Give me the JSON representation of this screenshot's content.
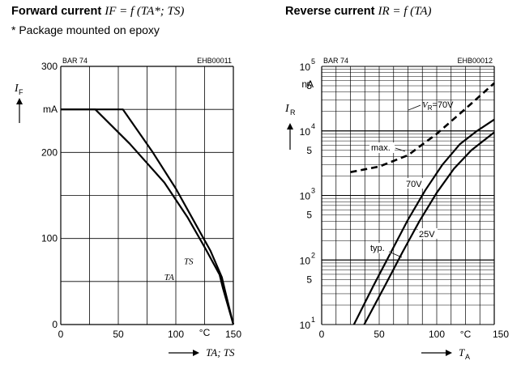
{
  "left_title": {
    "bold": "Forward current",
    "formula": "IF = f (TA*; TS)"
  },
  "left_subtitle": "* Package mounted on epoxy",
  "right_title": {
    "bold": "Reverse current",
    "formula": "IR = f (TA)"
  },
  "chart_data": [
    {
      "type": "line",
      "title": "Forward current IF = f (TA*; TS)",
      "header_left": "BAR 74",
      "header_right": "EHB00011",
      "ylabel": "IF",
      "y_unit": "mA",
      "xlabel": "TA; TS",
      "x_unit": "°C",
      "xlim": [
        0,
        150
      ],
      "ylim": [
        0,
        300
      ],
      "x_ticks": [
        "0",
        "50",
        "100",
        "150"
      ],
      "y_ticks": [
        "0",
        "100",
        "200",
        "300"
      ],
      "grid": true,
      "series": [
        {
          "name": "TS",
          "x": [
            0,
            54,
            80,
            100,
            115,
            130,
            140,
            143,
            150
          ],
          "y": [
            250,
            250,
            200,
            158,
            122,
            86,
            55,
            38,
            0
          ]
        },
        {
          "name": "TA",
          "x": [
            0,
            30,
            60,
            90,
            110,
            125,
            138,
            141,
            150
          ],
          "y": [
            250,
            250,
            210,
            165,
            125,
            90,
            58,
            42,
            0
          ]
        }
      ]
    },
    {
      "type": "line",
      "title": "Reverse current IR = f (TA)",
      "header_left": "BAR 74",
      "header_right": "EHB00012",
      "ylabel": "IR",
      "y_unit": "nA",
      "xlabel": "TA",
      "x_unit": "°C",
      "xlim": [
        0,
        150
      ],
      "ylim": [
        10,
        100000
      ],
      "y_scale": "log",
      "x_ticks": [
        "0",
        "50",
        "100",
        "150"
      ],
      "y_tick_labels": [
        "10^1",
        "5",
        "10^2",
        "5",
        "10^3",
        "5",
        "10^4",
        "5",
        "10^5"
      ],
      "grid": true,
      "annotations": [
        "VR = 70V",
        "max.",
        "typ.",
        "70V",
        "25V"
      ],
      "series": [
        {
          "name": "max.",
          "style": "dashed",
          "x": [
            25,
            50,
            75,
            100,
            125,
            150
          ],
          "y": [
            2300,
            2800,
            4200,
            9000,
            22000,
            55000
          ]
        },
        {
          "name": "70V",
          "style": "solid",
          "x": [
            28,
            45,
            60,
            75,
            90,
            105,
            120,
            135,
            150
          ],
          "y": [
            10,
            40,
            130,
            420,
            1200,
            3000,
            6200,
            10000,
            15000
          ]
        },
        {
          "name": "25V",
          "style": "solid",
          "x": [
            37,
            55,
            70,
            85,
            100,
            115,
            130,
            150
          ],
          "y": [
            10,
            40,
            130,
            400,
            1100,
            2600,
            5000,
            9500
          ]
        }
      ]
    }
  ]
}
